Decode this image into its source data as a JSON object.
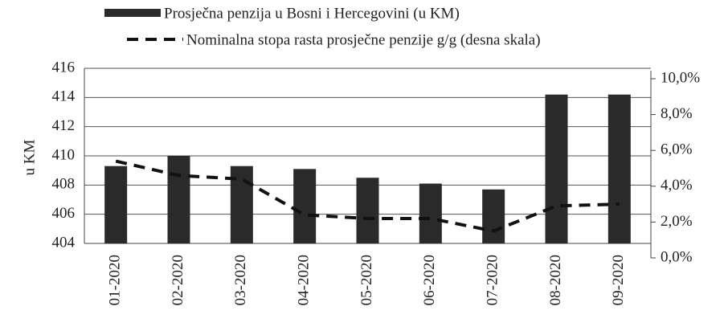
{
  "chart_data": {
    "type": "bar_line",
    "y_label": "u KM",
    "categories": [
      "01-2020",
      "02-2020",
      "03-2020",
      "04-2020",
      "05-2020",
      "06-2020",
      "07-2020",
      "08-2020",
      "09-2020"
    ],
    "series": [
      {
        "name": "Prosječna penzija u Bosni i Hercegovini (u KM)",
        "color": "#2a2a2a",
        "type": "bar",
        "values": [
          409.3,
          410.0,
          409.3,
          409.1,
          408.5,
          408.1,
          407.7,
          414.2,
          414.2
        ]
      },
      {
        "name": "Nominalna stopa rasta prosječne penzije g/g (desna skala)",
        "color": "#111111",
        "type": "line",
        "axis": "y2",
        "values": [
          5.4,
          4.6,
          4.4,
          2.4,
          2.2,
          2.2,
          1.5,
          2.9,
          3.0
        ]
      }
    ],
    "ylim": [
      404,
      416
    ],
    "yticks": [
      404,
      406,
      408,
      410,
      412,
      414,
      416
    ],
    "y2lim": [
      0,
      10
    ],
    "y2ticks": [
      {
        "value": 0,
        "label": "0,0%"
      },
      {
        "value": 2,
        "label": "2,0%"
      },
      {
        "value": 4,
        "label": "4,0%"
      },
      {
        "value": 6,
        "label": "6,0%"
      },
      {
        "value": 8,
        "label": "8,0%"
      },
      {
        "value": 10,
        "label": "10,0%"
      }
    ],
    "grid": true
  }
}
